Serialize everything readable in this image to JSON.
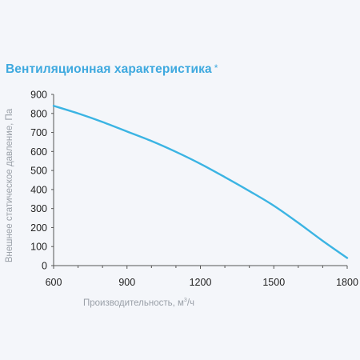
{
  "chart_data": {
    "type": "line",
    "title": "Вентиляционная характеристика",
    "title_mark": "*",
    "xlabel_main": "Производительность, м",
    "xlabel_sup": "3",
    "xlabel_tail": "/ч",
    "ylabel": "Внешнее статическое давление, Па",
    "xlim": [
      600,
      1800
    ],
    "ylim": [
      0,
      900
    ],
    "x_ticks": [
      "600",
      "900",
      "1200",
      "1500",
      "1800"
    ],
    "y_ticks": [
      "0",
      "100",
      "200",
      "300",
      "400",
      "500",
      "600",
      "700",
      "800",
      "900"
    ],
    "grid": false,
    "series": [
      {
        "color": "#3bb4e3",
        "x": [
          600,
          700,
          800,
          900,
          1000,
          1100,
          1200,
          1300,
          1400,
          1500,
          1600,
          1700,
          1800
        ],
        "y": [
          840,
          800,
          755,
          705,
          655,
          598,
          535,
          465,
          392,
          315,
          225,
          130,
          40
        ]
      }
    ],
    "colors": {
      "title": "#3ea9df",
      "axis": "#555555",
      "line": "#3bb4e3",
      "axis_title": "#9aa0a8"
    }
  }
}
